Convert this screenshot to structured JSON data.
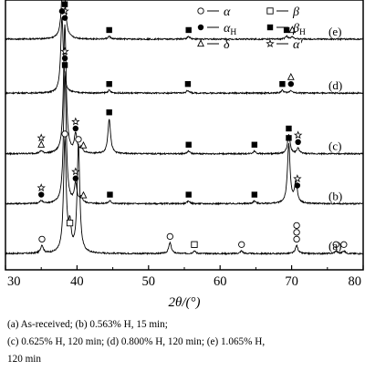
{
  "chart_data": {
    "type": "line",
    "xlabel": "2θ/(°)",
    "xlim": [
      30,
      80
    ],
    "xticks": [
      30,
      40,
      50,
      60,
      70,
      80
    ],
    "legend": {
      "placement": "top",
      "entries": [
        {
          "marker": "circle-open",
          "label": "α"
        },
        {
          "marker": "square-open",
          "label": "β"
        },
        {
          "marker": "circle-filled",
          "label": "α",
          "sub": "H"
        },
        {
          "marker": "square-filled",
          "label": "β",
          "sub": "H"
        },
        {
          "marker": "triangle-open",
          "label": "δ"
        },
        {
          "marker": "star-open",
          "label": "α′"
        }
      ]
    },
    "series": [
      {
        "name": "(a)",
        "baseline": 0.06,
        "peaks": [
          {
            "x": 35.1,
            "h": 0.03
          },
          {
            "x": 38.3,
            "h": 0.42
          },
          {
            "x": 39.0,
            "h": 0.09
          },
          {
            "x": 40.2,
            "h": 0.4
          },
          {
            "x": 53.0,
            "h": 0.04
          },
          {
            "x": 56.4,
            "h": 0.01
          },
          {
            "x": 63.0,
            "h": 0.01
          },
          {
            "x": 70.7,
            "h": 0.03
          },
          {
            "x": 76.2,
            "h": 0.01
          },
          {
            "x": 77.3,
            "h": 0.01
          }
        ],
        "markers": [
          {
            "x": 35.1,
            "stack": [
              "circle-open"
            ]
          },
          {
            "x": 38.3,
            "stack": [
              "circle-open"
            ]
          },
          {
            "x": 39.0,
            "stack": [
              "square-open"
            ]
          },
          {
            "x": 40.2,
            "stack": [
              "circle-open"
            ]
          },
          {
            "x": 53.0,
            "stack": [
              "circle-open"
            ]
          },
          {
            "x": 56.4,
            "stack": [
              "square-open"
            ]
          },
          {
            "x": 63.0,
            "stack": [
              "circle-open"
            ]
          },
          {
            "x": 70.7,
            "stack": [
              "circle-open",
              "circle-open",
              "circle-open"
            ]
          },
          {
            "x": 76.2,
            "stack": [
              "circle-open"
            ]
          },
          {
            "x": 77.3,
            "stack": [
              "circle-open"
            ]
          }
        ]
      },
      {
        "name": "(b)",
        "baseline": 0.245,
        "peaks": [
          {
            "x": 35.0,
            "h": 0.01
          },
          {
            "x": 38.3,
            "h": 0.49
          },
          {
            "x": 39.8,
            "h": 0.07
          },
          {
            "x": 40.6,
            "h": 0.02
          },
          {
            "x": 44.6,
            "h": 0.01
          },
          {
            "x": 55.6,
            "h": 0.01
          },
          {
            "x": 64.8,
            "h": 0.01
          },
          {
            "x": 69.6,
            "h": 0.22
          },
          {
            "x": 70.6,
            "h": 0.08
          }
        ],
        "markers": [
          {
            "x": 35.0,
            "stack": [
              "circle-filled",
              "star-open"
            ]
          },
          {
            "x": 38.3,
            "stack": [
              "square-filled",
              "circle-filled",
              "star-open"
            ]
          },
          {
            "x": 39.8,
            "stack": [
              "circle-filled",
              "star-open"
            ]
          },
          {
            "x": 40.9,
            "stack": [
              "triangle-open"
            ]
          },
          {
            "x": 44.6,
            "stack": [
              "square-filled"
            ]
          },
          {
            "x": 55.6,
            "stack": [
              "square-filled"
            ]
          },
          {
            "x": 64.8,
            "stack": [
              "square-filled"
            ]
          },
          {
            "x": 69.6,
            "stack": [
              "square-filled"
            ]
          },
          {
            "x": 70.8,
            "stack": [
              "circle-filled",
              "star-open"
            ]
          }
        ]
      },
      {
        "name": "(c)",
        "baseline": 0.43,
        "peaks": [
          {
            "x": 35.0,
            "h": 0.01
          },
          {
            "x": 38.3,
            "h": 0.48
          },
          {
            "x": 39.8,
            "h": 0.07
          },
          {
            "x": 40.6,
            "h": 0.02
          },
          {
            "x": 44.5,
            "h": 0.13
          },
          {
            "x": 55.6,
            "h": 0.01
          },
          {
            "x": 64.8,
            "h": 0.01
          },
          {
            "x": 69.6,
            "h": 0.07
          },
          {
            "x": 70.9,
            "h": 0.02
          }
        ],
        "markers": [
          {
            "x": 35.0,
            "stack": [
              "triangle-open",
              "star-open"
            ]
          },
          {
            "x": 38.3,
            "stack": [
              "circle-filled",
              "star-open",
              "square-filled"
            ]
          },
          {
            "x": 39.8,
            "stack": [
              "circle-filled",
              "star-open"
            ]
          },
          {
            "x": 40.9,
            "stack": [
              "triangle-open"
            ]
          },
          {
            "x": 44.5,
            "stack": [
              "square-filled"
            ]
          },
          {
            "x": 55.6,
            "stack": [
              "square-filled"
            ]
          },
          {
            "x": 64.8,
            "stack": [
              "square-filled"
            ]
          },
          {
            "x": 69.6,
            "stack": [
              "square-filled"
            ]
          },
          {
            "x": 70.9,
            "stack": [
              "circle-filled",
              "star-open"
            ]
          }
        ]
      },
      {
        "name": "(d)",
        "baseline": 0.655,
        "peaks": [
          {
            "x": 37.9,
            "h": 0.28
          },
          {
            "x": 44.5,
            "h": 0.01
          },
          {
            "x": 55.5,
            "h": 0.01
          },
          {
            "x": 68.7,
            "h": 0.01
          },
          {
            "x": 69.9,
            "h": 0.01
          }
        ],
        "markers": [
          {
            "x": 37.9,
            "stack": [
              "circle-filled"
            ]
          },
          {
            "x": 44.5,
            "stack": [
              "square-filled"
            ]
          },
          {
            "x": 55.5,
            "stack": [
              "square-filled"
            ]
          },
          {
            "x": 68.7,
            "stack": [
              "square-filled"
            ]
          },
          {
            "x": 69.9,
            "stack": [
              "circle-filled",
              "triangle-open"
            ]
          }
        ]
      },
      {
        "name": "(e)",
        "baseline": 0.855,
        "peaks": [
          {
            "x": 38.1,
            "h": 0.34
          },
          {
            "x": 44.5,
            "h": 0.01
          },
          {
            "x": 55.6,
            "h": 0.01
          },
          {
            "x": 69.3,
            "h": 0.01
          },
          {
            "x": 70.1,
            "h": 0.01
          }
        ],
        "markers": [
          {
            "x": 38.1,
            "stack": [
              "square-filled"
            ]
          },
          {
            "x": 44.5,
            "stack": [
              "square-filled"
            ]
          },
          {
            "x": 55.6,
            "stack": [
              "square-filled"
            ]
          },
          {
            "x": 69.3,
            "stack": [
              "square-filled"
            ]
          },
          {
            "x": 70.1,
            "stack": [
              "triangle-open"
            ]
          }
        ]
      }
    ]
  },
  "caption": {
    "line1": "(a)  As-received;  (b)  0.563%  H,  15  min;",
    "line2": "(c) 0.625% H, 120 min; (d) 0.800% H, 120 min; (e) 1.065% H,",
    "line3": "120 min"
  }
}
